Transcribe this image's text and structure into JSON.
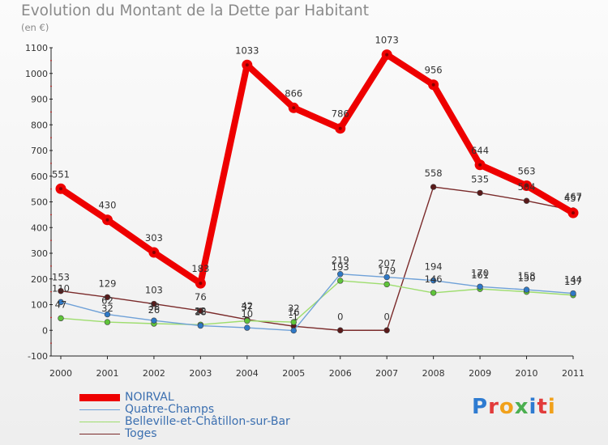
{
  "title": "Evolution du Montant de la Dette par Habitant",
  "unit": "(en €)",
  "brand": {
    "text": "Proxiti",
    "letter_colors": [
      "#2e7bd1",
      "#e23b3b",
      "#f1a11b",
      "#4caf50",
      "#2e7bd1",
      "#e23b3b",
      "#f1a11b"
    ]
  },
  "chart_data": {
    "type": "line",
    "title": "Evolution du Montant de la Dette par Habitant",
    "ylabel": "(en €)",
    "xlabel": "",
    "x": [
      "2000",
      "2001",
      "2002",
      "2003",
      "2004",
      "2005",
      "2006",
      "2007",
      "2008",
      "2009",
      "2010",
      "2011"
    ],
    "ylim": [
      -100,
      1100
    ],
    "yticks": [
      "-100",
      "0",
      "100",
      "200",
      "300",
      "400",
      "500",
      "600",
      "700",
      "800",
      "900",
      "1000",
      "1100"
    ],
    "grid": false,
    "legend_placement": "bottom-left",
    "series": [
      {
        "name": "NOIRVAL",
        "color": "#ee0000",
        "values": [
          551,
          430,
          303,
          183,
          1033,
          866,
          786,
          1073,
          956,
          644,
          563,
          457
        ],
        "labels": [
          "551",
          "430",
          "303",
          "183",
          "1033",
          "866",
          "786",
          "1073",
          "956",
          "644",
          "563",
          "457"
        ]
      },
      {
        "name": "Quatre-Champs",
        "color": "#6fa1d8",
        "values": [
          110,
          62,
          38,
          18,
          10,
          -1,
          219,
          207,
          194,
          170,
          158,
          144
        ],
        "labels": [
          "110",
          "62",
          "38",
          "18",
          "10",
          "-1",
          "219",
          "207",
          "194",
          "170",
          "158",
          "144"
        ]
      },
      {
        "name": "Belleville-et-Châtillon-sur-Bar",
        "color": "#9edd6e",
        "values": [
          47,
          32,
          26,
          22,
          37,
          32,
          193,
          179,
          146,
          161,
          150,
          137
        ],
        "labels": [
          "47",
          "32",
          "26",
          "22",
          "37",
          "32",
          "193",
          "179",
          "146",
          "161",
          "150",
          "137"
        ]
      },
      {
        "name": "Toges",
        "color": "#7a2a2a",
        "values": [
          153,
          129,
          103,
          76,
          42,
          16,
          0,
          0,
          558,
          535,
          504,
          467
        ],
        "labels": [
          "153",
          "129",
          "103",
          "76",
          "42",
          "16",
          "0",
          "0",
          "558",
          "535",
          "504",
          "467"
        ]
      }
    ]
  }
}
